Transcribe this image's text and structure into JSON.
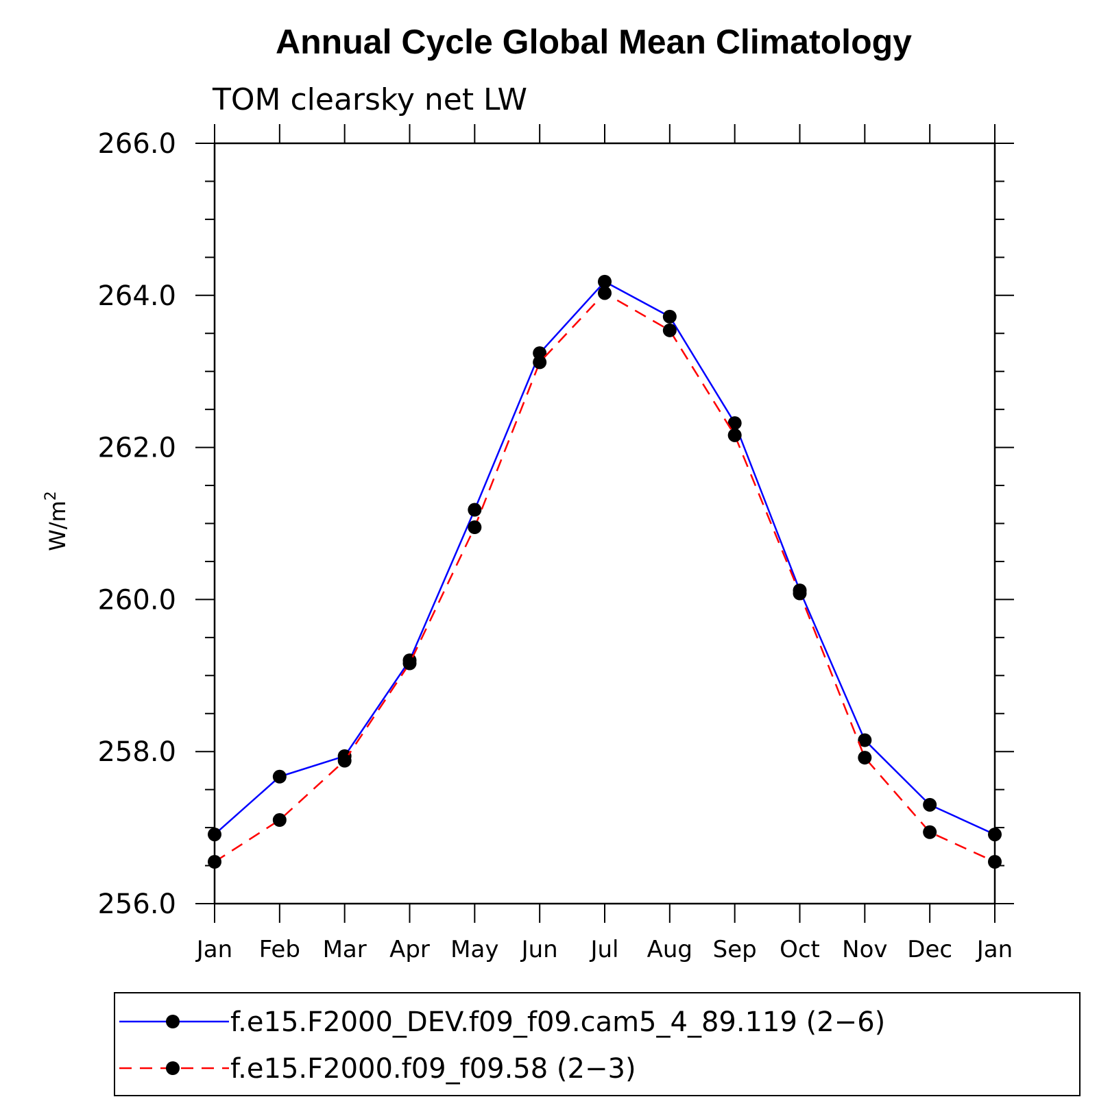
{
  "chart_data": {
    "type": "line",
    "title": "Annual Cycle Global Mean Climatology",
    "subtitle": "TOM clearsky net LW",
    "ylabel_base": "W/m",
    "ylabel_sup": "2",
    "ylim": [
      256.0,
      266.0
    ],
    "yticks": [
      "256.0",
      "258.0",
      "260.0",
      "262.0",
      "264.0",
      "266.0"
    ],
    "categories": [
      "Jan",
      "Feb",
      "Mar",
      "Apr",
      "May",
      "Jun",
      "Jul",
      "Aug",
      "Sep",
      "Oct",
      "Nov",
      "Dec",
      "Jan"
    ],
    "grid": false,
    "legend_position": "bottom",
    "series": [
      {
        "name": "f.e15.F2000_DEV.f09_f09.cam5_4_89.119 (2−6)",
        "color": "#0000ff",
        "dash": "solid",
        "values": [
          256.91,
          257.67,
          257.94,
          259.2,
          261.18,
          263.24,
          264.18,
          263.72,
          262.32,
          260.12,
          258.15,
          257.3,
          256.91
        ]
      },
      {
        "name": "f.e15.F2000.f09_f09.58 (2−3)",
        "color": "#ff0000",
        "dash": "dashed",
        "values": [
          256.55,
          257.1,
          257.88,
          259.16,
          260.95,
          263.12,
          264.03,
          263.54,
          262.16,
          260.08,
          257.92,
          256.94,
          256.55
        ]
      }
    ]
  }
}
